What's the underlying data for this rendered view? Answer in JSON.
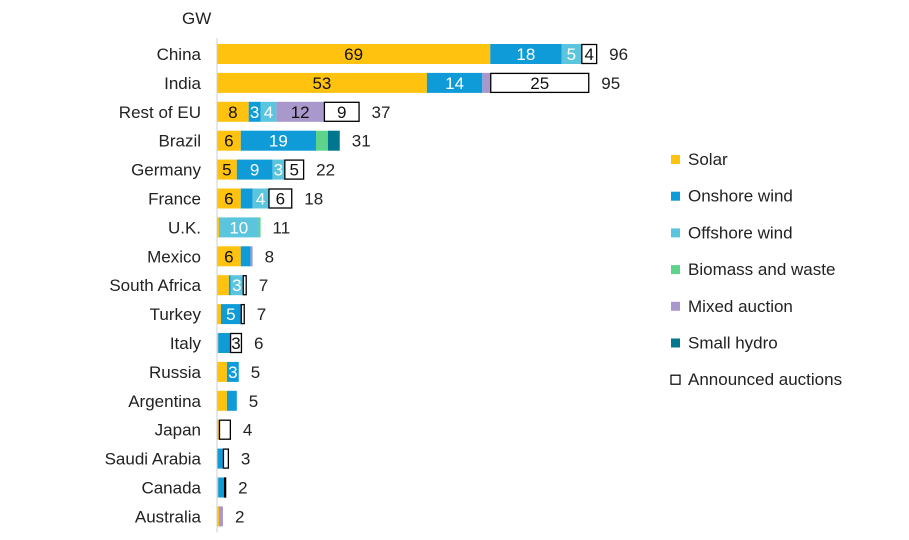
{
  "chart_data": {
    "type": "bar",
    "orientation": "horizontal",
    "stacked": true,
    "unit_label": "GW",
    "categories": [
      "China",
      "India",
      "Rest of EU",
      "Brazil",
      "Germany",
      "France",
      "U.K.",
      "Mexico",
      "South Africa",
      "Turkey",
      "Italy",
      "Russia",
      "Argentina",
      "Japan",
      "Saudi Arabia",
      "Canada",
      "Australia"
    ],
    "totals": [
      96,
      95,
      37,
      31,
      22,
      18,
      11,
      8,
      7,
      7,
      6,
      5,
      5,
      4,
      3,
      2,
      2
    ],
    "series": [
      {
        "name": "Solar",
        "color": "#FFC20E",
        "values": [
          69,
          53,
          8,
          6,
          5,
          6,
          0.5,
          6,
          3,
          1,
          0.3,
          2.5,
          2.5,
          0.5,
          0,
          0.3,
          0.5
        ],
        "labels": [
          "69",
          "53",
          "8",
          "6",
          "5",
          "6",
          "",
          "6",
          "",
          "",
          "",
          "",
          "",
          "",
          "",
          "",
          ""
        ]
      },
      {
        "name": "Onshore wind",
        "color": "#0E9BD8",
        "values": [
          18,
          14,
          3,
          19,
          9,
          3,
          0,
          2.5,
          0.5,
          5,
          3,
          3,
          2.5,
          0,
          1.5,
          1.5,
          0
        ],
        "labels": [
          "18",
          "14",
          "3",
          "19",
          "9",
          "",
          "",
          "",
          "",
          "5",
          "",
          "3",
          "",
          "",
          "",
          "",
          ""
        ]
      },
      {
        "name": "Offshore wind",
        "color": "#5BC5DE",
        "values": [
          5,
          0,
          4,
          0,
          3,
          4,
          10,
          0,
          3,
          0,
          0,
          0,
          0,
          0,
          0,
          0,
          0
        ],
        "labels": [
          "5",
          "",
          "4",
          "",
          "3",
          "4",
          "10",
          "",
          "3",
          "",
          "",
          "",
          "",
          "",
          "",
          "",
          ""
        ]
      },
      {
        "name": "Biomass and waste",
        "color": "#5ED38C",
        "values": [
          0,
          0,
          0,
          3,
          0,
          0,
          0.5,
          0,
          0,
          0,
          0,
          0,
          0,
          0,
          0,
          0,
          0
        ],
        "labels": [
          "",
          "",
          "",
          "",
          "",
          "",
          "",
          "",
          "",
          "",
          "",
          "",
          "",
          "",
          "",
          "",
          ""
        ]
      },
      {
        "name": "Mixed auction",
        "color": "#A898CC",
        "values": [
          0,
          2,
          12,
          0,
          0,
          0,
          0,
          0.5,
          0,
          0,
          0,
          0,
          0,
          0,
          0,
          0,
          1
        ],
        "labels": [
          "",
          "",
          "12",
          "",
          "",
          "",
          "",
          "",
          "",
          "",
          "",
          "",
          "",
          "",
          "",
          "",
          ""
        ]
      },
      {
        "name": "Small hydro",
        "color": "#00778F",
        "values": [
          0,
          0,
          0,
          3,
          0,
          0,
          0,
          0,
          0,
          0,
          0,
          0,
          0,
          0,
          0,
          0,
          0
        ],
        "labels": [
          "",
          "",
          "",
          "",
          "",
          "",
          "",
          "",
          "",
          "",
          "",
          "",
          "",
          "",
          "",
          "",
          ""
        ]
      },
      {
        "name": "Announced auctions",
        "color": "#FFFFFF",
        "outline": "#000000",
        "values": [
          4,
          25,
          9,
          0,
          5,
          6,
          0,
          0,
          1,
          1,
          3,
          0,
          0,
          3,
          1.5,
          0.5,
          0
        ],
        "labels": [
          "4",
          "25",
          "9",
          "",
          "5",
          "6",
          "",
          "",
          "",
          "",
          "3",
          "",
          "",
          "",
          "",
          "",
          ""
        ]
      }
    ],
    "xlim": [
      0,
      100
    ],
    "grid": false,
    "legend_position": "right"
  }
}
